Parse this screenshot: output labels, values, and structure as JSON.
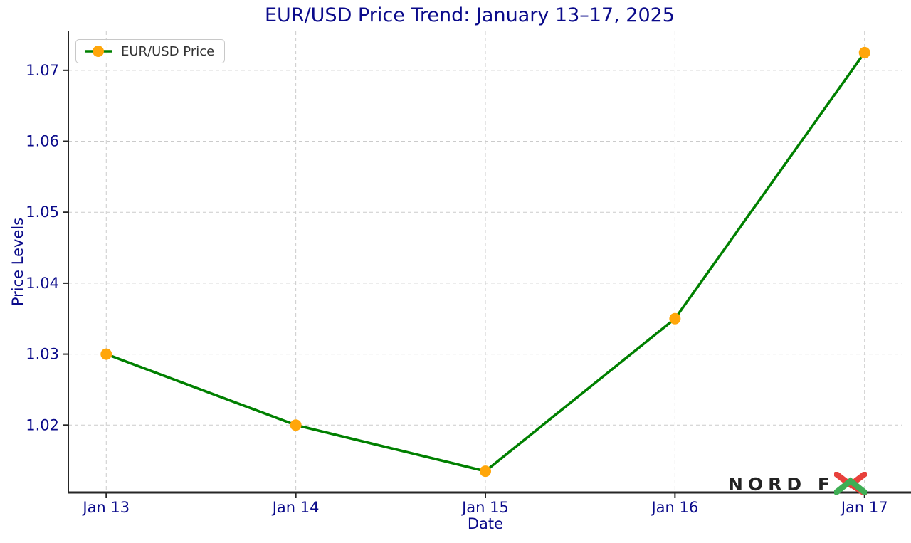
{
  "chart_data": {
    "type": "line",
    "title": "EUR/USD Price Trend: January 13–17, 2025",
    "categories": [
      "Jan 13",
      "Jan 14",
      "Jan 15",
      "Jan 16",
      "Jan 17"
    ],
    "series": [
      {
        "name": "EUR/USD Price",
        "values": [
          1.03,
          1.02,
          1.0135,
          1.035,
          1.0725
        ]
      }
    ],
    "xlabel": "Date",
    "ylabel": "Price Levels",
    "ylim": [
      1.0105,
      1.0755
    ],
    "yticks": [
      1.02,
      1.03,
      1.04,
      1.05,
      1.06,
      1.07
    ],
    "grid": true,
    "grid_style": "dashed",
    "legend_position": "upper left",
    "line_color": "#008000",
    "marker_color": "#ffa60a",
    "axis_text_color": "#0a0a8a",
    "grid_color": "#cbcbcb",
    "spine_color": "#262626"
  },
  "watermark": {
    "brand": "NORD FX",
    "text_part": "NORD F",
    "x_red": "#e8413c",
    "x_green": "#3fae54"
  }
}
